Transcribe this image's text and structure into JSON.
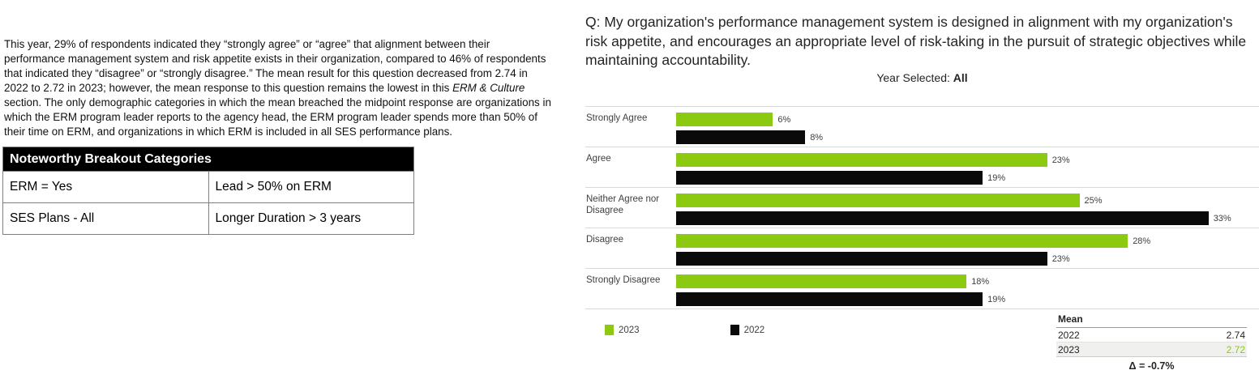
{
  "colors": {
    "green": "#8CC911",
    "black": "#0A0A0A",
    "gridline": "#d9d9d9"
  },
  "left_panel": {
    "paragraph": {
      "before_italic": "This year, 29% of respondents indicated they “strongly agree” or “agree” that alignment between their performance management system and risk appetite exists in their organization, compared to 46% of respondents that indicated they “disagree” or “strongly disagree.”  The mean result for this question decreased from 2.74 in 2022 to 2.72 in 2023; however, the mean response to this question remains the lowest in this ",
      "italic": "ERM & Culture",
      "after_italic": " section. The only demographic categories in which the mean breached the midpoint response are organizations in which the ERM program leader reports to the agency head, the ERM program leader spends more than 50% of their time on ERM, and organizations in which ERM is included in all SES performance plans."
    },
    "breakout_table": {
      "header": "Noteworthy Breakout Categories",
      "rows": [
        [
          "ERM = Yes",
          "Lead > 50% on ERM"
        ],
        [
          "SES Plans - All",
          "Longer Duration > 3 years"
        ]
      ]
    }
  },
  "right_panel": {
    "question": "Q: My organization's performance management system is designed in alignment with my organization's risk appetite, and encourages an appropriate level of risk-taking in the pursuit of strategic objectives while maintaining accountability.",
    "year_selected_label": "Year Selected: ",
    "year_selected_value": "All"
  },
  "chart_data": {
    "type": "bar",
    "orientation": "horizontal",
    "title": "Q: My organization's performance management system is designed in alignment with my organization's risk appetite, and encourages an appropriate level of risk-taking in the pursuit of strategic objectives while maintaining accountability.",
    "categories": [
      "Strongly Agree",
      "Agree",
      "Neither Agree nor Disagree",
      "Disagree",
      "Strongly Disagree"
    ],
    "series": [
      {
        "name": "2023",
        "color": "#8CC911",
        "values": [
          6,
          23,
          25,
          28,
          18
        ]
      },
      {
        "name": "2022",
        "color": "#0A0A0A",
        "values": [
          8,
          19,
          33,
          23,
          19
        ]
      }
    ],
    "value_suffix": "%",
    "xlim": [
      0,
      35.5
    ],
    "grid": "horizontal-separators-only",
    "legend_position": "bottom-left",
    "mean_table": {
      "header": "Mean",
      "rows": [
        {
          "year": "2022",
          "value": "2.74",
          "highlight": false
        },
        {
          "year": "2023",
          "value": "2.72",
          "highlight": true
        }
      ],
      "delta": "Δ = -0.7%"
    }
  }
}
